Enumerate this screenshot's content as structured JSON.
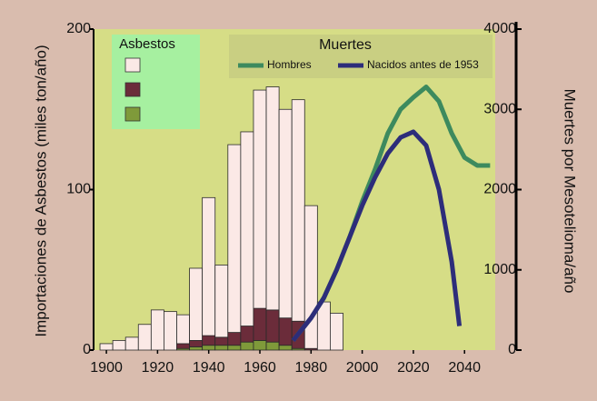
{
  "chart_data": {
    "type": "bar",
    "ylabel": "Importaciones de Asbestos (miles ton/año)",
    "y2label": "Muertes por Mesotelioma/año",
    "xlim": [
      1895,
      2052
    ],
    "xticks": [
      1900,
      1920,
      1940,
      1960,
      1980,
      2000,
      2020,
      2040
    ],
    "ylim": [
      0,
      200
    ],
    "yticks": [
      0,
      100,
      200
    ],
    "y2lim": [
      0,
      4000
    ],
    "y2ticks": [
      0,
      1000,
      2000,
      3000,
      4000
    ],
    "bar_legend_title": "Asbestos",
    "line_legend_title": "Muertes",
    "bar_x": [
      1900,
      1905,
      1910,
      1915,
      1920,
      1925,
      1930,
      1935,
      1940,
      1945,
      1950,
      1955,
      1960,
      1965,
      1970,
      1975,
      1980,
      1985,
      1990
    ],
    "bar_series": [
      {
        "color": "#fbe9e6",
        "values": [
          4,
          6,
          8,
          16,
          25,
          24,
          18,
          45,
          86,
          45,
          117,
          121,
          136,
          139,
          130,
          138,
          89,
          30,
          23
        ]
      },
      {
        "color": "#6b2c3a",
        "values": [
          0,
          0,
          0,
          0,
          0,
          0,
          3,
          4,
          6,
          5,
          8,
          10,
          20,
          20,
          17,
          17,
          1,
          0,
          0
        ]
      },
      {
        "color": "#7f9a3a",
        "values": [
          0,
          0,
          0,
          0,
          0,
          0,
          1,
          2,
          3,
          3,
          3,
          5,
          6,
          5,
          3,
          1,
          0,
          0,
          0
        ]
      }
    ],
    "series": [
      {
        "name": "Hombres",
        "color": "#3d8a5e",
        "axis": "y2",
        "x": [
          1973,
          1980,
          1985,
          1990,
          1995,
          2000,
          2005,
          2010,
          2015,
          2020,
          2025,
          2030,
          2035,
          2040,
          2045,
          2050
        ],
        "values": [
          120,
          400,
          650,
          1000,
          1400,
          1850,
          2250,
          2700,
          3000,
          3150,
          3280,
          3100,
          2700,
          2400,
          2300,
          2300
        ]
      },
      {
        "name": "Nacidos antes de 1953",
        "color": "#2d2d7a",
        "axis": "y2",
        "x": [
          1973,
          1980,
          1985,
          1990,
          1995,
          2000,
          2005,
          2010,
          2015,
          2020,
          2025,
          2030,
          2035,
          2038
        ],
        "values": [
          120,
          400,
          650,
          1000,
          1400,
          1800,
          2150,
          2450,
          2650,
          2720,
          2550,
          2000,
          1100,
          300
        ]
      }
    ]
  }
}
